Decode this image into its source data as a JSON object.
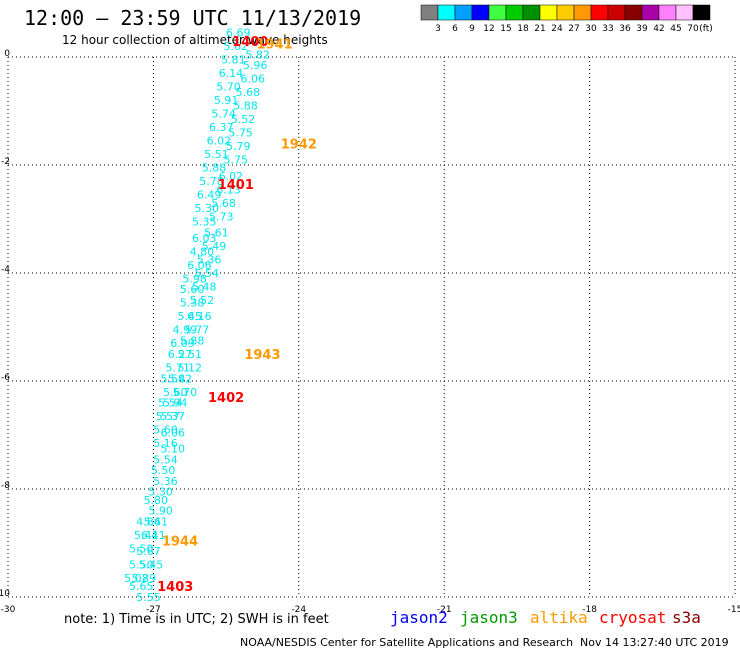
{
  "header": {
    "title": "12:00 – 23:59 UTC 11/13/2019",
    "subtitle": "12 hour collection of altimeter wave heights"
  },
  "colorbar": {
    "unit": "(ft)",
    "ticks": [
      "3",
      "6",
      "9",
      "12",
      "15",
      "18",
      "21",
      "24",
      "27",
      "30",
      "33",
      "36",
      "39",
      "42",
      "45",
      "70"
    ],
    "colors": [
      "#808080",
      "#00ffff",
      "#00a0ff",
      "#0000ff",
      "#40ff40",
      "#00cc00",
      "#009000",
      "#ffff00",
      "#ffcc00",
      "#ff9900",
      "#ff0000",
      "#cc0000",
      "#880000",
      "#aa00aa",
      "#ff80ff",
      "#ffc0ff",
      "#000000"
    ]
  },
  "note": "note: 1) Time is in UTC; 2) SWH is in feet",
  "legend": [
    {
      "label": "jason2",
      "color": "#0000ff"
    },
    {
      "label": "jason3",
      "color": "#009900"
    },
    {
      "label": "altika",
      "color": "#ff9900"
    },
    {
      "label": "cryosat",
      "color": "#ff0000"
    },
    {
      "label": "s3a",
      "color": "#880000"
    }
  ],
  "footer": {
    "credit": "NOAA/NESDIS Center for Satellite Applications and Research",
    "timestamp": "Nov 14 13:27:40 UTC 2019"
  },
  "chart_data": {
    "type": "scatter",
    "title": "12:00 – 23:59 UTC 11/13/2019",
    "subtitle": "12 hour collection of altimeter wave heights",
    "x_ticks": [
      "-30",
      "-27",
      "-24",
      "-21",
      "-18",
      "-15"
    ],
    "y_ticks": [
      "0",
      "-2",
      "-4",
      "-6",
      "-8",
      "-10"
    ],
    "xlim": [
      -30,
      -15
    ],
    "ylim": [
      -10,
      0
    ],
    "grid": true,
    "series": [
      {
        "name": "altika",
        "color": "#ff9900",
        "points": [
          {
            "x": -27.1,
            "y": -10.0,
            "v": "5.55"
          },
          {
            "x": -27.25,
            "y": -9.8,
            "v": "5.65"
          },
          {
            "x": -27.2,
            "y": -9.65,
            "v": "5.89"
          },
          {
            "x": -27.35,
            "y": -9.65,
            "v": "5.02"
          },
          {
            "x": -27.05,
            "y": -9.4,
            "v": "5.45"
          },
          {
            "x": -27.25,
            "y": -9.4,
            "v": "5.50"
          },
          {
            "x": -27.1,
            "y": -9.15,
            "v": "5.67"
          },
          {
            "x": -27.25,
            "y": -9.1,
            "v": "5.50"
          },
          {
            "x": -27.0,
            "y": -8.85,
            "v": "6.11"
          },
          {
            "x": -27.15,
            "y": -8.85,
            "v": "5.44"
          },
          {
            "x": -26.95,
            "y": -8.6,
            "v": "5.61"
          },
          {
            "x": -27.1,
            "y": -8.6,
            "v": "4.84"
          },
          {
            "x": -26.85,
            "y": -8.4,
            "v": "5.90"
          },
          {
            "x": -26.95,
            "y": -8.2,
            "v": "5.80"
          },
          {
            "x": -26.85,
            "y": -8.05,
            "v": "5.30"
          },
          {
            "x": -26.75,
            "y": -7.85,
            "v": "5.36"
          },
          {
            "x": -26.8,
            "y": -7.65,
            "v": "5.50"
          },
          {
            "x": -26.75,
            "y": -7.45,
            "v": "5.54"
          },
          {
            "x": -26.6,
            "y": -7.25,
            "v": "5.10"
          },
          {
            "x": -26.75,
            "y": -7.15,
            "v": "5.16"
          },
          {
            "x": -26.6,
            "y": -6.95,
            "v": "6.06"
          },
          {
            "x": -26.75,
            "y": -6.9,
            "v": "5.60"
          },
          {
            "x": -26.6,
            "y": -6.65,
            "v": "5.37"
          },
          {
            "x": -26.7,
            "y": -6.65,
            "v": "5.57"
          },
          {
            "x": -26.55,
            "y": -6.4,
            "v": "5.94"
          },
          {
            "x": -26.65,
            "y": -6.4,
            "v": "5.54"
          },
          {
            "x": -26.35,
            "y": -6.2,
            "v": "5.70"
          },
          {
            "x": -26.55,
            "y": -6.2,
            "v": "5.60"
          },
          {
            "x": -26.45,
            "y": -5.95,
            "v": "5.42"
          },
          {
            "x": -26.6,
            "y": -5.95,
            "v": "5.58"
          },
          {
            "x": -26.25,
            "y": -5.75,
            "v": "5.12"
          },
          {
            "x": -26.5,
            "y": -5.75,
            "v": "5.71"
          },
          {
            "x": -26.25,
            "y": -5.5,
            "v": "5.51"
          },
          {
            "x": -26.45,
            "y": -5.5,
            "v": "6.27"
          },
          {
            "x": -26.2,
            "y": -5.25,
            "v": "5.88"
          },
          {
            "x": -26.4,
            "y": -5.3,
            "v": "6.09"
          },
          {
            "x": -26.1,
            "y": -5.05,
            "v": "5.77"
          },
          {
            "x": -26.35,
            "y": -5.05,
            "v": "4.99"
          },
          {
            "x": -26.05,
            "y": -4.8,
            "v": "6.16"
          },
          {
            "x": -26.25,
            "y": -4.8,
            "v": "5.45"
          },
          {
            "x": -26.0,
            "y": -4.5,
            "v": "5.52"
          },
          {
            "x": -26.2,
            "y": -4.55,
            "v": "5.38"
          },
          {
            "x": -25.95,
            "y": -4.25,
            "v": "5.48"
          },
          {
            "x": -26.2,
            "y": -4.3,
            "v": "5.60"
          },
          {
            "x": -25.9,
            "y": -4.0,
            "v": "5.54"
          },
          {
            "x": -26.15,
            "y": -4.1,
            "v": "5.98"
          },
          {
            "x": -25.85,
            "y": -3.75,
            "v": "5.36"
          },
          {
            "x": -26.05,
            "y": -3.85,
            "v": "6.06"
          },
          {
            "x": -25.75,
            "y": -3.5,
            "v": "5.49"
          },
          {
            "x": -26.0,
            "y": -3.6,
            "v": "4.80"
          },
          {
            "x": -25.7,
            "y": -3.25,
            "v": "5.61"
          },
          {
            "x": -25.95,
            "y": -3.35,
            "v": "6.03"
          },
          {
            "x": -25.6,
            "y": -2.95,
            "v": "5.73"
          },
          {
            "x": -25.95,
            "y": -3.05,
            "v": "5.35"
          },
          {
            "x": -25.55,
            "y": -2.7,
            "v": "5.68"
          },
          {
            "x": -25.9,
            "y": -2.8,
            "v": "5.30"
          },
          {
            "x": -25.45,
            "y": -2.45,
            "v": "6.13"
          },
          {
            "x": -25.85,
            "y": -2.55,
            "v": "6.49"
          },
          {
            "x": -25.4,
            "y": -2.2,
            "v": "6.02"
          },
          {
            "x": -25.8,
            "y": -2.3,
            "v": "5.78"
          },
          {
            "x": -25.3,
            "y": -1.9,
            "v": "5.75"
          },
          {
            "x": -25.75,
            "y": -2.05,
            "v": "5.88"
          },
          {
            "x": -25.25,
            "y": -1.65,
            "v": "5.79"
          },
          {
            "x": -25.7,
            "y": -1.8,
            "v": "5.51"
          },
          {
            "x": -25.2,
            "y": -1.4,
            "v": "5.75"
          },
          {
            "x": -25.65,
            "y": -1.55,
            "v": "6.02"
          },
          {
            "x": -25.15,
            "y": -1.15,
            "v": "5.52"
          },
          {
            "x": -25.6,
            "y": -1.3,
            "v": "6.37"
          },
          {
            "x": -25.1,
            "y": -0.9,
            "v": "5.88"
          },
          {
            "x": -25.55,
            "y": -1.05,
            "v": "5.74"
          },
          {
            "x": -25.05,
            "y": -0.65,
            "v": "5.68"
          },
          {
            "x": -25.5,
            "y": -0.8,
            "v": "5.91"
          },
          {
            "x": -24.95,
            "y": -0.4,
            "v": "6.06"
          },
          {
            "x": -25.45,
            "y": -0.55,
            "v": "5.70"
          },
          {
            "x": -24.9,
            "y": -0.15,
            "v": "5.96"
          },
          {
            "x": -25.4,
            "y": -0.3,
            "v": "6.14"
          },
          {
            "x": -24.85,
            "y": 0.05,
            "v": "5.82"
          },
          {
            "x": -25.35,
            "y": -0.05,
            "v": "5.81"
          },
          {
            "x": -25.3,
            "y": 0.2,
            "v": "5.62"
          },
          {
            "x": -25.25,
            "y": 0.45,
            "v": "6.69"
          }
        ]
      }
    ],
    "time_labels": [
      {
        "x": -25.0,
        "y": 0.3,
        "label": "1400",
        "color": "#ff0000"
      },
      {
        "x": -24.5,
        "y": 0.25,
        "label": "1941",
        "color": "#ff9900"
      },
      {
        "x": -24.0,
        "y": -1.6,
        "label": "1942",
        "color": "#ff9900"
      },
      {
        "x": -25.3,
        "y": -2.35,
        "label": "1401",
        "color": "#ff0000"
      },
      {
        "x": -24.75,
        "y": -5.5,
        "label": "1943",
        "color": "#ff9900"
      },
      {
        "x": -25.5,
        "y": -6.3,
        "label": "1402",
        "color": "#ff0000"
      },
      {
        "x": -26.45,
        "y": -8.95,
        "label": "1944",
        "color": "#ff9900"
      },
      {
        "x": -26.55,
        "y": -9.8,
        "label": "1403",
        "color": "#ff0000"
      }
    ]
  }
}
